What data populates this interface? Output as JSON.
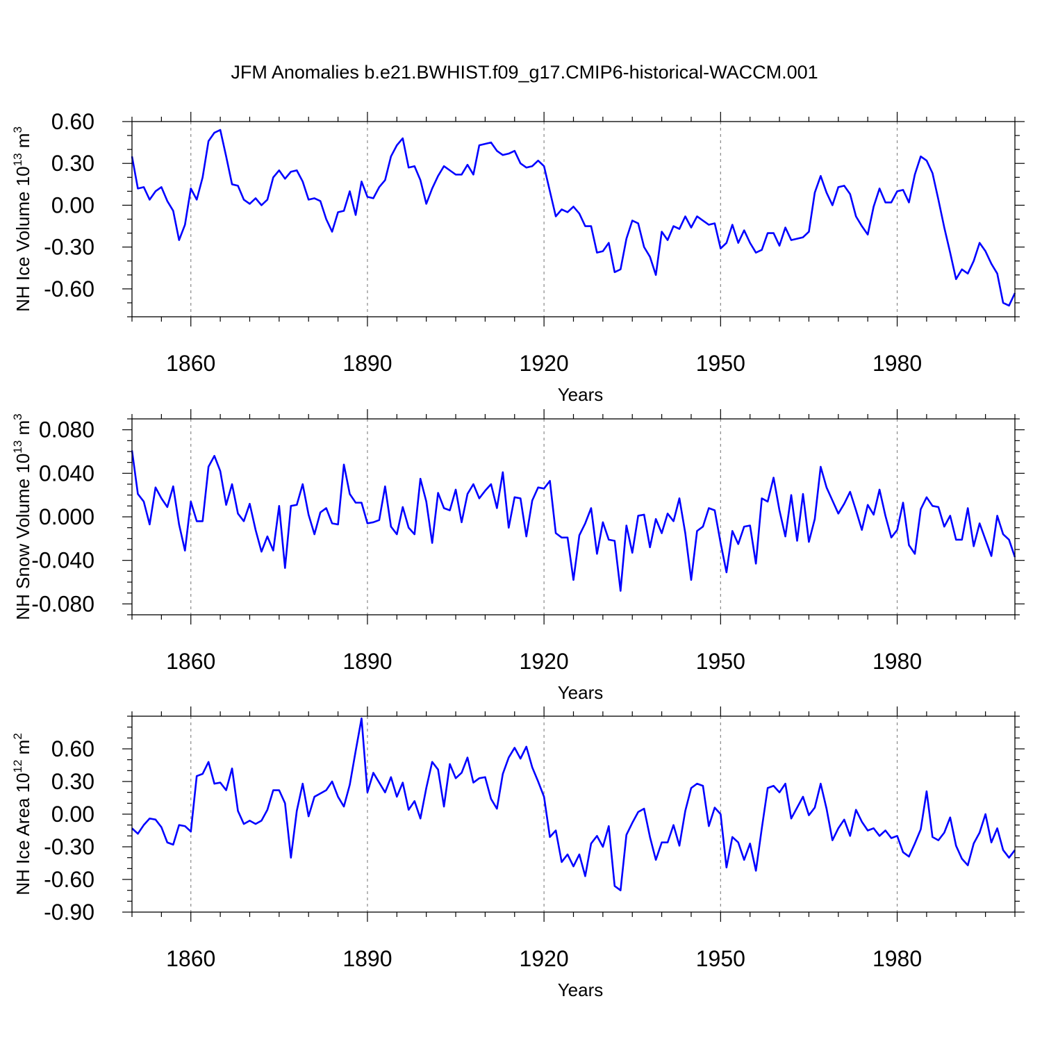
{
  "chart_data": [
    {
      "type": "line",
      "title": "JFM Anomalies b.e21.BWHIST.f09_g17.CMIP6-historical-WACCM.001",
      "xlabel": "Years",
      "ylabel": {
        "prefix": "NH Ice Volume 10",
        "exp": "13",
        "unit": " m",
        "unit_exp": "3"
      },
      "xlim": [
        1850,
        2000
      ],
      "ylim": [
        -0.8,
        0.6
      ],
      "yticks": [
        0.6,
        0.3,
        0.0,
        -0.3,
        -0.6
      ],
      "ytick_labels": [
        "0.60",
        "0.30",
        "0.00",
        "-0.30",
        "-0.60"
      ],
      "yminor_step": 0.1,
      "xticks": [
        1860,
        1890,
        1920,
        1950,
        1980
      ],
      "xtick_labels": [
        "1860",
        "1890",
        "1920",
        "1950",
        "1980"
      ],
      "xminor_step": 5,
      "grid_x": true,
      "color": "#0000ff",
      "x_start": 1850,
      "values": [
        0.35,
        0.12,
        0.13,
        0.04,
        0.1,
        0.13,
        0.03,
        -0.04,
        -0.25,
        -0.14,
        0.12,
        0.04,
        0.2,
        0.46,
        0.52,
        0.54,
        0.35,
        0.15,
        0.14,
        0.04,
        0.01,
        0.05,
        0.0,
        0.04,
        0.2,
        0.25,
        0.19,
        0.24,
        0.25,
        0.17,
        0.04,
        0.05,
        0.03,
        -0.1,
        -0.19,
        -0.05,
        -0.04,
        0.1,
        -0.07,
        0.17,
        0.06,
        0.05,
        0.13,
        0.18,
        0.35,
        0.43,
        0.48,
        0.27,
        0.28,
        0.18,
        0.01,
        0.12,
        0.21,
        0.28,
        0.25,
        0.22,
        0.22,
        0.29,
        0.22,
        0.43,
        0.44,
        0.45,
        0.39,
        0.36,
        0.37,
        0.39,
        0.3,
        0.27,
        0.28,
        0.32,
        0.28,
        0.1,
        -0.08,
        -0.03,
        -0.05,
        -0.01,
        -0.06,
        -0.15,
        -0.15,
        -0.34,
        -0.33,
        -0.27,
        -0.48,
        -0.46,
        -0.24,
        -0.11,
        -0.13,
        -0.3,
        -0.37,
        -0.5,
        -0.19,
        -0.25,
        -0.15,
        -0.17,
        -0.08,
        -0.16,
        -0.08,
        -0.11,
        -0.14,
        -0.13,
        -0.31,
        -0.27,
        -0.14,
        -0.27,
        -0.18,
        -0.27,
        -0.34,
        -0.32,
        -0.2,
        -0.2,
        -0.29,
        -0.16,
        -0.25,
        -0.24,
        -0.23,
        -0.19,
        0.09,
        0.21,
        0.09,
        0.0,
        0.13,
        0.14,
        0.08,
        -0.08,
        -0.15,
        -0.21,
        -0.01,
        0.12,
        0.02,
        0.02,
        0.1,
        0.11,
        0.02,
        0.22,
        0.35,
        0.32,
        0.23,
        0.04,
        -0.16,
        -0.34,
        -0.53,
        -0.46,
        -0.49,
        -0.4,
        -0.27,
        -0.33,
        -0.42,
        -0.49,
        -0.7,
        -0.72,
        -0.63
      ]
    },
    {
      "type": "line",
      "title": "",
      "xlabel": "Years",
      "ylabel": {
        "prefix": "NH Snow Volume 10",
        "exp": "13",
        "unit": " m",
        "unit_exp": "3"
      },
      "xlim": [
        1850,
        2000
      ],
      "ylim": [
        -0.09,
        0.09
      ],
      "yticks": [
        0.08,
        0.04,
        0.0,
        -0.04,
        -0.08
      ],
      "ytick_labels": [
        "0.080",
        "0.040",
        "0.000",
        "-0.040",
        "-0.080"
      ],
      "yminor_step": 0.01,
      "xticks": [
        1860,
        1890,
        1920,
        1950,
        1980
      ],
      "xtick_labels": [
        "1860",
        "1890",
        "1920",
        "1950",
        "1980"
      ],
      "xminor_step": 5,
      "grid_x": true,
      "color": "#0000ff",
      "x_start": 1850,
      "values": [
        0.061,
        0.021,
        0.014,
        -0.007,
        0.027,
        0.017,
        0.009,
        0.028,
        -0.007,
        -0.031,
        0.014,
        -0.004,
        -0.004,
        0.046,
        0.056,
        0.042,
        0.011,
        0.03,
        0.003,
        -0.004,
        0.012,
        -0.012,
        -0.032,
        -0.018,
        -0.031,
        0.01,
        -0.047,
        0.01,
        0.011,
        0.03,
        0.002,
        -0.016,
        0.004,
        0.008,
        -0.006,
        -0.007,
        0.048,
        0.021,
        0.013,
        0.013,
        -0.006,
        -0.005,
        -0.003,
        0.028,
        -0.009,
        -0.016,
        0.009,
        -0.01,
        -0.016,
        0.035,
        0.014,
        -0.024,
        0.022,
        0.008,
        0.006,
        0.025,
        -0.005,
        0.021,
        0.03,
        0.017,
        0.024,
        0.03,
        0.008,
        0.041,
        -0.01,
        0.018,
        0.017,
        -0.018,
        0.015,
        0.027,
        0.026,
        0.033,
        -0.015,
        -0.019,
        -0.019,
        -0.058,
        -0.017,
        -0.006,
        0.008,
        -0.034,
        -0.005,
        -0.021,
        -0.022,
        -0.068,
        -0.008,
        -0.033,
        0.001,
        0.002,
        -0.028,
        -0.002,
        -0.015,
        0.003,
        -0.004,
        0.017,
        -0.015,
        -0.058,
        -0.013,
        -0.009,
        0.008,
        0.006,
        -0.024,
        -0.051,
        -0.013,
        -0.025,
        -0.009,
        -0.008,
        -0.043,
        0.017,
        0.014,
        0.036,
        0.006,
        -0.018,
        0.02,
        -0.022,
        0.021,
        -0.023,
        -0.002,
        0.046,
        0.027,
        0.015,
        0.003,
        0.012,
        0.023,
        0.006,
        -0.012,
        0.011,
        0.002,
        0.025,
        0.001,
        -0.019,
        -0.012,
        0.013,
        -0.026,
        -0.034,
        0.007,
        0.018,
        0.01,
        0.009,
        -0.009,
        0.001,
        -0.021,
        -0.021,
        0.008,
        -0.027,
        -0.006,
        -0.021,
        -0.036,
        0.001,
        -0.016,
        -0.021,
        -0.037
      ]
    },
    {
      "type": "line",
      "title": "",
      "xlabel": "Years",
      "ylabel": {
        "prefix": "NH Ice Area 10",
        "exp": "12",
        "unit": " m",
        "unit_exp": "2"
      },
      "xlim": [
        1850,
        2000
      ],
      "ylim": [
        -0.9,
        0.9
      ],
      "yticks": [
        0.6,
        0.3,
        0.0,
        -0.3,
        -0.6,
        -0.9
      ],
      "ytick_labels": [
        "0.60",
        "0.30",
        "0.00",
        "-0.30",
        "-0.60",
        "-0.90"
      ],
      "yminor_step": 0.1,
      "xticks": [
        1860,
        1890,
        1920,
        1950,
        1980
      ],
      "xtick_labels": [
        "1860",
        "1890",
        "1920",
        "1950",
        "1980"
      ],
      "xminor_step": 5,
      "grid_x": true,
      "color": "#0000ff",
      "x_start": 1850,
      "values": [
        -0.13,
        -0.18,
        -0.1,
        -0.04,
        -0.05,
        -0.12,
        -0.26,
        -0.28,
        -0.1,
        -0.11,
        -0.16,
        0.35,
        0.37,
        0.48,
        0.28,
        0.29,
        0.22,
        0.42,
        0.03,
        -0.09,
        -0.06,
        -0.09,
        -0.06,
        0.04,
        0.22,
        0.22,
        0.1,
        -0.4,
        0.03,
        0.28,
        -0.02,
        0.16,
        0.19,
        0.22,
        0.3,
        0.16,
        0.07,
        0.27,
        0.58,
        0.88,
        0.2,
        0.38,
        0.29,
        0.2,
        0.34,
        0.16,
        0.29,
        0.04,
        0.12,
        -0.04,
        0.24,
        0.48,
        0.41,
        0.07,
        0.46,
        0.33,
        0.38,
        0.52,
        0.29,
        0.33,
        0.34,
        0.14,
        0.05,
        0.37,
        0.52,
        0.61,
        0.51,
        0.62,
        0.43,
        0.3,
        0.16,
        -0.21,
        -0.15,
        -0.44,
        -0.37,
        -0.48,
        -0.37,
        -0.57,
        -0.27,
        -0.2,
        -0.3,
        -0.11,
        -0.66,
        -0.7,
        -0.19,
        -0.08,
        0.02,
        0.05,
        -0.21,
        -0.42,
        -0.26,
        -0.26,
        -0.1,
        -0.29,
        0.03,
        0.24,
        0.28,
        0.26,
        -0.11,
        0.06,
        0.0,
        -0.49,
        -0.21,
        -0.26,
        -0.42,
        -0.27,
        -0.52,
        -0.13,
        0.24,
        0.26,
        0.2,
        0.28,
        -0.04,
        0.06,
        0.16,
        -0.01,
        0.06,
        0.28,
        0.05,
        -0.24,
        -0.13,
        -0.05,
        -0.2,
        0.04,
        -0.07,
        -0.15,
        -0.13,
        -0.2,
        -0.15,
        -0.22,
        -0.2,
        -0.35,
        -0.39,
        -0.27,
        -0.14,
        0.21,
        -0.21,
        -0.24,
        -0.17,
        -0.03,
        -0.29,
        -0.41,
        -0.47,
        -0.27,
        -0.17,
        0.0,
        -0.26,
        -0.13,
        -0.33,
        -0.4,
        -0.33
      ]
    }
  ]
}
